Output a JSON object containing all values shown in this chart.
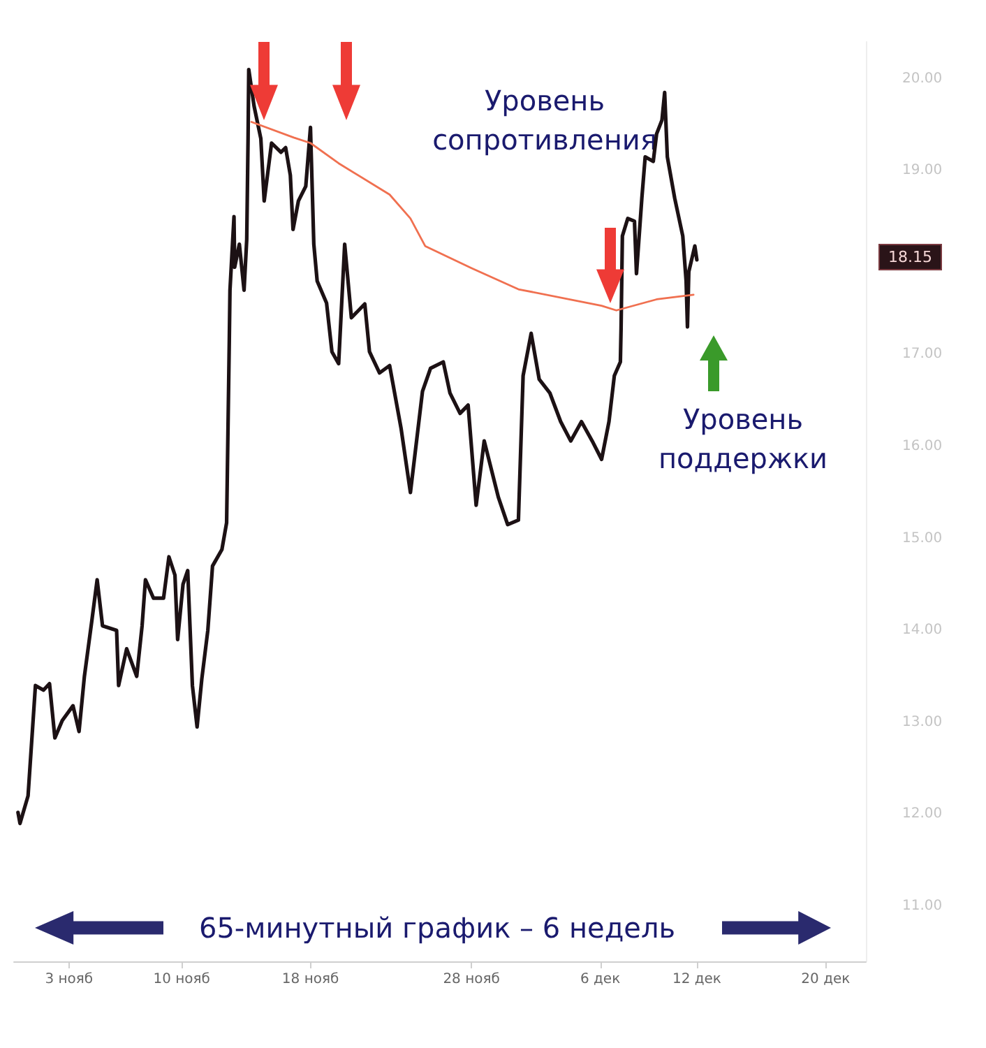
{
  "chart_data": {
    "type": "line",
    "xlim": [
      "--10-30T14:00",
      "--12-22T12:00"
    ],
    "xticks": [
      {
        "value": "--11-03",
        "label": "3 нояб"
      },
      {
        "value": "--11-10",
        "label": "10 нояб"
      },
      {
        "value": "--11-18",
        "label": "18 нояб"
      },
      {
        "value": "--11-28",
        "label": "28 нояб"
      },
      {
        "value": "--12-06",
        "label": "6 дек"
      },
      {
        "value": "--12-12",
        "label": "12 дек"
      },
      {
        "value": "--12-20",
        "label": "20 дек"
      }
    ],
    "ylim": [
      10.4,
      20.4
    ],
    "yticks": [
      {
        "value": 11,
        "label": "11.00"
      },
      {
        "value": 12,
        "label": "12.00"
      },
      {
        "value": 13,
        "label": "13.00"
      },
      {
        "value": 14,
        "label": "14.00"
      },
      {
        "value": 15,
        "label": "15.00"
      },
      {
        "value": 16,
        "label": "16.00"
      },
      {
        "value": 17,
        "label": "17.00"
      },
      {
        "value": 19,
        "label": "19.00"
      },
      {
        "value": 20,
        "label": "20.00"
      }
    ],
    "marker": "none",
    "series": [
      {
        "color": "#1c1114",
        "x": [
          "--10-30T20:00",
          "--10-30T23:00",
          "--10-31T11:00",
          "--10-31T22:00",
          "--11-01T10:00",
          "--11-01T19:00",
          "--11-02T03:00",
          "--11-02T14:00",
          "--11-03T06:00",
          "--11-03T15:00",
          "--11-03T23:00",
          "--11-04T10:00",
          "--11-04T18:00",
          "--11-05T02:00",
          "--11-05T23:00",
          "--11-06T02:00",
          "--11-06T14:00",
          "--11-07T05:00",
          "--11-07T13:00",
          "--11-07T18:00",
          "--11-08T06:00",
          "--11-08T21:00",
          "--11-09T05:00",
          "--11-09T14:00",
          "--11-09T18:00",
          "--11-10T02:00",
          "--11-10T09:00",
          "--11-10T16:00",
          "--11-10T23:00",
          "--11-11T06:00",
          "--11-11T15:00",
          "--11-11T22:00",
          "--11-12T12:00",
          "--11-12T19:00",
          "--11-12T23:00",
          "--11-13T00:00",
          "--11-13T06:00",
          "--11-13T07:00",
          "--11-13T14:00",
          "--11-13T21:00",
          "--11-14T01:00",
          "--11-14T03:00",
          "--11-14T04:00",
          "--11-14T12:00",
          "--11-14T22:00",
          "--11-15T03:00",
          "--11-15T14:00",
          "--11-16T04:00",
          "--11-16T11:00",
          "--11-16T18:00",
          "--11-16T22:00",
          "--11-17T06:00",
          "--11-17T17:00",
          "--11-18T00:00",
          "--11-18T05:00",
          "--11-18T10:00",
          "--11-19T00:00",
          "--11-19T08:00",
          "--11-19T18:00",
          "--11-20T03:00",
          "--11-20T13:00",
          "--11-21T09:00",
          "--11-21T16:00",
          "--11-22T07:00",
          "--11-22T22:00",
          "--11-23T15:00",
          "--11-24T05:00",
          "--11-24T23:00",
          "--11-25T11:00",
          "--11-26T06:00",
          "--11-26T16:00",
          "--11-27T07:00",
          "--11-27T19:00",
          "--11-28T07:00",
          "--11-28T19:00",
          "--11-29T16:00",
          "--11-30T06:00",
          "--11-30T22:00",
          "--12-01T05:00",
          "--12-01T17:00",
          "--12-02T05:00",
          "--12-02T21:00",
          "--12-03T13:00",
          "--12-04T04:00",
          "--12-04T20:00",
          "--12-05T12:00",
          "--12-06T02:00",
          "--12-06T13:00",
          "--12-06T21:00",
          "--12-07T06:00",
          "--12-07T07:00",
          "--12-07T09:00",
          "--12-07T17:00",
          "--12-08T03:00",
          "--12-08T06:00",
          "--12-08T14:00",
          "--12-08T19:00",
          "--12-09T07:00",
          "--12-09T12:00",
          "--12-09T20:00",
          "--12-10T00:00",
          "--12-10T04:00",
          "--12-10T15:00",
          "--12-11T03:00",
          "--12-11T08:00",
          "--12-11T10:00",
          "--12-11T12:00",
          "--12-11T21:00",
          "--12-12T00:00"
        ],
        "values": [
          12.02,
          11.9,
          12.2,
          13.4,
          13.35,
          13.42,
          12.83,
          13.02,
          13.18,
          12.9,
          13.5,
          14.1,
          14.55,
          14.05,
          14.0,
          13.4,
          13.8,
          13.5,
          14.05,
          14.55,
          14.35,
          14.35,
          14.8,
          14.6,
          13.9,
          14.5,
          14.65,
          13.4,
          12.95,
          13.47,
          14.0,
          14.7,
          14.88,
          15.17,
          17.15,
          17.7,
          18.5,
          17.95,
          18.2,
          17.7,
          18.25,
          19.36,
          20.1,
          19.7,
          19.35,
          18.67,
          19.3,
          19.2,
          19.25,
          18.95,
          18.36,
          18.67,
          18.83,
          19.47,
          18.2,
          17.8,
          17.56,
          17.03,
          16.9,
          18.2,
          17.4,
          17.55,
          17.03,
          16.8,
          16.88,
          16.2,
          15.5,
          16.6,
          16.85,
          16.92,
          16.58,
          16.36,
          16.45,
          15.36,
          16.06,
          15.45,
          15.15,
          15.2,
          16.77,
          17.23,
          16.73,
          16.58,
          16.27,
          16.06,
          16.27,
          16.06,
          15.86,
          16.27,
          16.77,
          16.92,
          17.27,
          18.29,
          18.48,
          18.45,
          17.88,
          18.7,
          19.15,
          19.1,
          19.4,
          19.55,
          19.85,
          19.15,
          18.7,
          18.29,
          17.8,
          17.3,
          17.9,
          18.18,
          18.03
        ]
      },
      {
        "color": "#f07050",
        "x": [
          "--11-14T08:00",
          "--11-16T23:00",
          "--11-18T00:00",
          "--11-19T18:00",
          "--11-22T22:00",
          "--11-24T05:00",
          "--11-25T03:00",
          "--11-28T00:00",
          "--11-30T22:00",
          "--12-06T02:00",
          "--12-07T00:00",
          "--12-09T12:00",
          "--12-11T19:00"
        ],
        "values": [
          19.53,
          19.36,
          19.3,
          19.08,
          18.74,
          18.48,
          18.18,
          17.94,
          17.71,
          17.53,
          17.48,
          17.6,
          17.65
        ]
      }
    ],
    "annotations": [
      "Уровень сопротивления",
      "Уровень поддержки",
      "18.15",
      "65-минутный график – 6 недель"
    ]
  }
}
